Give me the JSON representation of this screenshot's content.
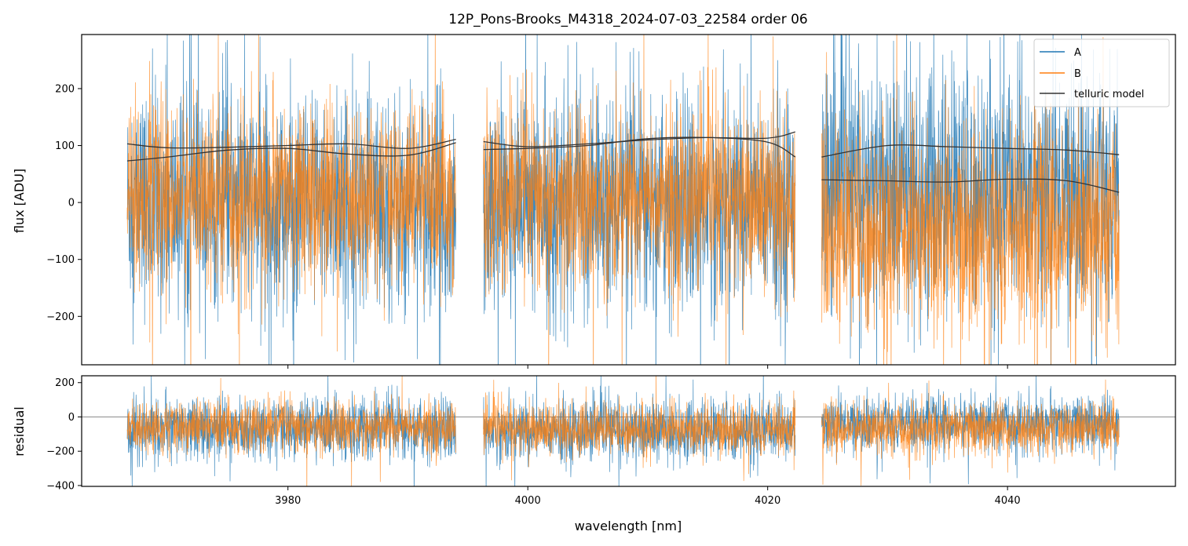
{
  "chart_data": {
    "type": "line",
    "title": "12P_Pons-Brooks_M4318_2024-07-03_22584  order 06",
    "xlabel": "wavelength [nm]",
    "xlim": [
      3962.8,
      4054.0
    ],
    "x_ticks": [
      3980,
      4000,
      4020,
      4040
    ],
    "x_tick_labels": [
      "3980",
      "4000",
      "4020",
      "4040"
    ],
    "segments": [
      {
        "x_range": [
          3966.6,
          3994.0
        ]
      },
      {
        "x_range": [
          3996.3,
          4022.3
        ]
      },
      {
        "x_range": [
          4024.5,
          4049.3
        ]
      }
    ],
    "panels": [
      {
        "name": "flux",
        "ylabel": "flux [ADU]",
        "ylim": [
          -285,
          295
        ],
        "y_ticks": [
          200,
          100,
          0,
          -100,
          -200
        ],
        "y_tick_labels": [
          "200",
          "100",
          "0",
          "−100",
          "−200"
        ],
        "legend": {
          "position": "upper right",
          "entries": [
            "A",
            "B",
            "telluric model"
          ]
        },
        "series": [
          {
            "name": "A",
            "color": "#1f77b4",
            "kind": "noisy-spectrum",
            "segment_means": [
              0,
              0,
              20
            ],
            "noise_sigma": [
              95,
              95,
              110
            ]
          },
          {
            "name": "B",
            "color": "#ff7f0e",
            "kind": "noisy-spectrum",
            "segment_means": [
              10,
              5,
              -50
            ],
            "noise_sigma": [
              80,
              80,
              95
            ]
          }
        ],
        "telluric_model": [
          {
            "name": "telluric model A",
            "color": "#333333",
            "points": [
              [
                3966.6,
                103
              ],
              [
                3970,
                96
              ],
              [
                3975,
                97
              ],
              [
                3980,
                100
              ],
              [
                3985,
                103
              ],
              [
                3990,
                95
              ],
              [
                3994,
                111
              ],
              [
                3996.3,
                107
              ],
              [
                4000,
                98
              ],
              [
                4005,
                103
              ],
              [
                4010,
                110
              ],
              [
                4015,
                114
              ],
              [
                4020,
                113
              ],
              [
                4022.3,
                124
              ],
              [
                4024.5,
                80
              ],
              [
                4030,
                100
              ],
              [
                4035,
                98
              ],
              [
                4040,
                95
              ],
              [
                4045,
                92
              ],
              [
                4049.3,
                84
              ]
            ]
          },
          {
            "name": "telluric model B",
            "color": "#333333",
            "points": [
              [
                3966.6,
                73
              ],
              [
                3970,
                80
              ],
              [
                3975,
                92
              ],
              [
                3980,
                95
              ],
              [
                3985,
                85
              ],
              [
                3990,
                83
              ],
              [
                3994,
                105
              ],
              [
                3996.3,
                93
              ],
              [
                4000,
                95
              ],
              [
                4005,
                100
              ],
              [
                4010,
                112
              ],
              [
                4015,
                114
              ],
              [
                4020,
                106
              ],
              [
                4022.3,
                80
              ],
              [
                4024.5,
                40
              ],
              [
                4030,
                38
              ],
              [
                4035,
                36
              ],
              [
                4040,
                41
              ],
              [
                4045,
                38
              ],
              [
                4049.3,
                18
              ]
            ]
          }
        ]
      },
      {
        "name": "residual",
        "ylabel": "residual",
        "ylim": [
          -405,
          240
        ],
        "y_ticks": [
          200,
          0,
          -200,
          -400
        ],
        "y_tick_labels": [
          "200",
          "0",
          "−200",
          "−400"
        ],
        "zero_line": true,
        "series": [
          {
            "name": "A",
            "color": "#1f77b4",
            "kind": "noisy-spectrum",
            "segment_means": [
              -70,
              -80,
              -40
            ],
            "noise_sigma": [
              90,
              90,
              80
            ]
          },
          {
            "name": "B",
            "color": "#ff7f0e",
            "kind": "noisy-spectrum",
            "segment_means": [
              -60,
              -70,
              -70
            ],
            "noise_sigma": [
              75,
              75,
              75
            ]
          }
        ]
      }
    ]
  }
}
